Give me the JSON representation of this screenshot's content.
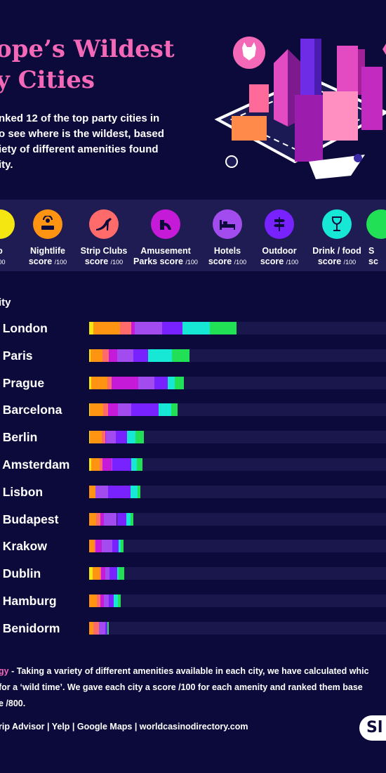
{
  "title": {
    "line1": "ope’s Wildest",
    "line2": "y Cities"
  },
  "intro": {
    "line1": "nked 12 of the top party cities in",
    "line2": "o see where is the wildest, based",
    "line3": "iety of different amenities found",
    "line4": "ity."
  },
  "categories": [
    {
      "name": "o",
      "unit": "100",
      "color": "#f4e711",
      "icon": "casino-icon"
    },
    {
      "name": "Nightlife",
      "sub": "score",
      "unit": "/100",
      "color": "#ff9312",
      "icon": "dj-icon"
    },
    {
      "name": "Strip Clubs",
      "sub": "score",
      "unit": "/100",
      "color": "#ff6a6a",
      "icon": "heel-icon"
    },
    {
      "name": "Amusement",
      "sub": "Parks score",
      "unit": "/100",
      "color": "#c61ad9",
      "icon": "slide-icon"
    },
    {
      "name": "Hotels",
      "sub": "score",
      "unit": "/100",
      "color": "#a24cf0",
      "icon": "bed-icon"
    },
    {
      "name": "Outdoor",
      "sub": "score",
      "unit": "/100",
      "color": "#7722ff",
      "icon": "signpost-icon"
    },
    {
      "name": "Drink / food",
      "sub": "score",
      "unit": "/100",
      "color": "#17e8d6",
      "icon": "wine-icon"
    },
    {
      "name": "S",
      "sub": "sc",
      "unit": "",
      "color": "#22e056",
      "icon": "partial-icon"
    }
  ],
  "city_header": "ity",
  "chart_data": {
    "type": "bar",
    "stacked": true,
    "orientation": "horizontal",
    "title": "ope’s Wildest y Cities",
    "categories": [
      ". London",
      ". Paris",
      ". Prague",
      ". Barcelona",
      ". Berlin",
      ". Amsterdam",
      ". Lisbon",
      ". Budapest",
      ". Krakow",
      ". Dublin",
      ". Hamburg",
      ". Benidorm"
    ],
    "segment_colors": [
      "#f4e711",
      "#ff9312",
      "#ff6a6a",
      "#c61ad9",
      "#a24cf0",
      "#7722ff",
      "#17e8d6",
      "#22e056"
    ],
    "values": [
      [
        10,
        68,
        28,
        10,
        68,
        52,
        68,
        68
      ],
      [
        3,
        30,
        16,
        22,
        40,
        38,
        60,
        44
      ],
      [
        6,
        40,
        10,
        68,
        40,
        34,
        18,
        24
      ],
      [
        2,
        34,
        12,
        24,
        35,
        68,
        32,
        16
      ],
      [
        2,
        30,
        8,
        3,
        24,
        28,
        22,
        22
      ],
      [
        6,
        20,
        8,
        22,
        2,
        48,
        14,
        14
      ],
      [
        0,
        16,
        0,
        0,
        32,
        56,
        18,
        8
      ],
      [
        0,
        18,
        10,
        10,
        32,
        24,
        10,
        8
      ],
      [
        0,
        12,
        4,
        16,
        26,
        16,
        6,
        6
      ],
      [
        8,
        18,
        4,
        10,
        12,
        18,
        4,
        14
      ],
      [
        0,
        20,
        8,
        10,
        12,
        12,
        10,
        8
      ],
      [
        0,
        10,
        14,
        0,
        16,
        6,
        0,
        4
      ]
    ],
    "xlim": [
      0,
      800
    ]
  },
  "methodology": {
    "prefix": "gy",
    "line1": " - Taking a variety of different amenities available in each city, we have calculated whic",
    "line2": "for a ‘wild time’. We gave each city a score /100 for each amenity and ranked them base",
    "line3": "e /800."
  },
  "sources": "rip Advisor | Yelp | Google Maps | worldcasinodirectory.com",
  "logo_text": "Sl"
}
